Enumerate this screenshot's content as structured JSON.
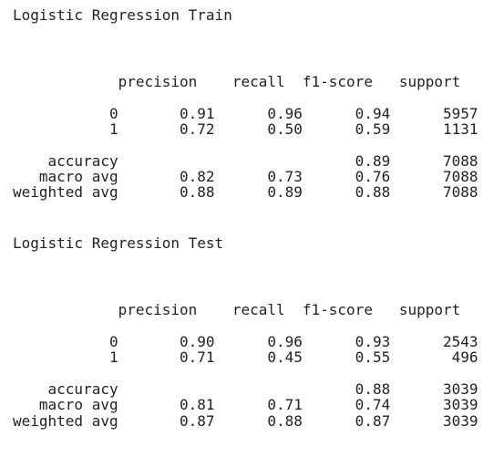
{
  "reports": [
    {
      "title": "Logistic Regression Train",
      "header": "            precision    recall  f1-score   support",
      "rows": [
        "           0       0.91      0.96      0.94      5957",
        "           1       0.72      0.50      0.59      1131",
        "    accuracy                           0.89      7088",
        "   macro avg       0.82      0.73      0.76      7088",
        "weighted avg       0.88      0.89      0.88      7088"
      ]
    },
    {
      "title": "Logistic Regression Test",
      "header": "            precision    recall  f1-score   support",
      "rows": [
        "           0       0.90      0.96      0.93      2543",
        "           1       0.71      0.45      0.55       496",
        "    accuracy                           0.88      3039",
        "   macro avg       0.81      0.71      0.74      3039",
        "weighted avg       0.87      0.88      0.87      3039"
      ]
    }
  ]
}
